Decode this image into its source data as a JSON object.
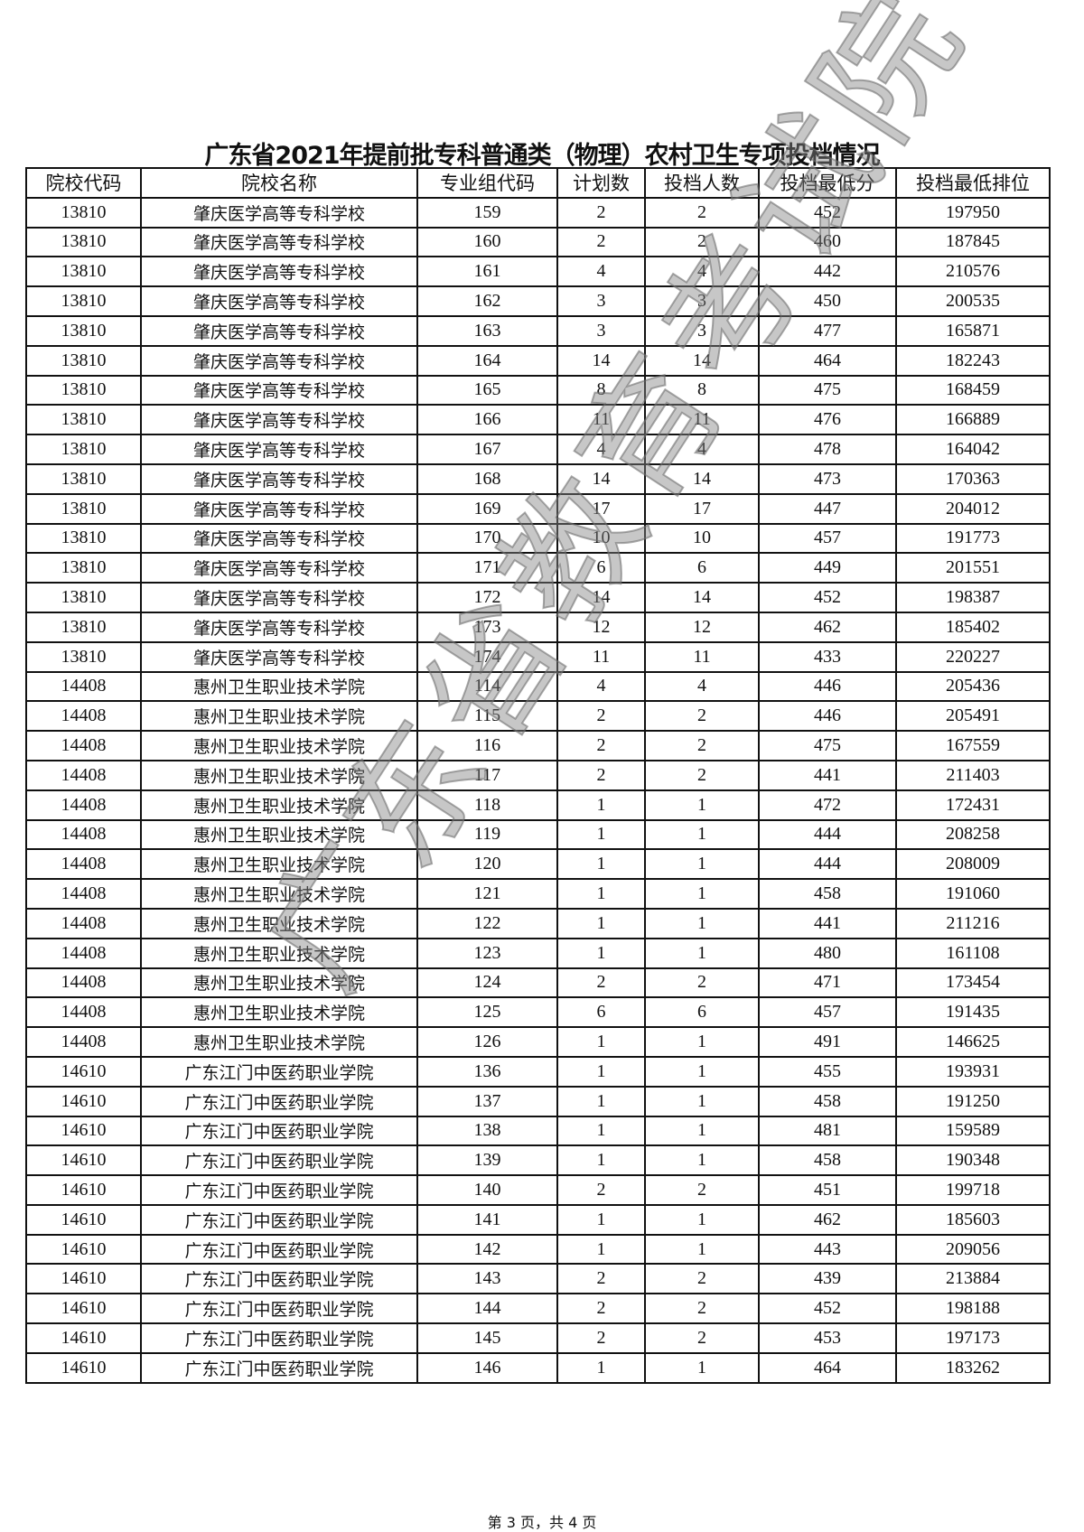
{
  "title": "广东省2021年提前批专科普通类（物理）农村卫生专项投档情况",
  "columns": [
    "院校代码",
    "院校名称",
    "专业组代码",
    "计划数",
    "投档人数",
    "投档最低分",
    "投档最低排位"
  ],
  "rows": [
    [
      "13810",
      "肇庆医学高等专科学校",
      "159",
      "2",
      "2",
      "452",
      "197950"
    ],
    [
      "13810",
      "肇庆医学高等专科学校",
      "160",
      "2",
      "2",
      "460",
      "187845"
    ],
    [
      "13810",
      "肇庆医学高等专科学校",
      "161",
      "4",
      "4",
      "442",
      "210576"
    ],
    [
      "13810",
      "肇庆医学高等专科学校",
      "162",
      "3",
      "3",
      "450",
      "200535"
    ],
    [
      "13810",
      "肇庆医学高等专科学校",
      "163",
      "3",
      "3",
      "477",
      "165871"
    ],
    [
      "13810",
      "肇庆医学高等专科学校",
      "164",
      "14",
      "14",
      "464",
      "182243"
    ],
    [
      "13810",
      "肇庆医学高等专科学校",
      "165",
      "8",
      "8",
      "475",
      "168459"
    ],
    [
      "13810",
      "肇庆医学高等专科学校",
      "166",
      "11",
      "11",
      "476",
      "166889"
    ],
    [
      "13810",
      "肇庆医学高等专科学校",
      "167",
      "4",
      "4",
      "478",
      "164042"
    ],
    [
      "13810",
      "肇庆医学高等专科学校",
      "168",
      "14",
      "14",
      "473",
      "170363"
    ],
    [
      "13810",
      "肇庆医学高等专科学校",
      "169",
      "17",
      "17",
      "447",
      "204012"
    ],
    [
      "13810",
      "肇庆医学高等专科学校",
      "170",
      "10",
      "10",
      "457",
      "191773"
    ],
    [
      "13810",
      "肇庆医学高等专科学校",
      "171",
      "6",
      "6",
      "449",
      "201551"
    ],
    [
      "13810",
      "肇庆医学高等专科学校",
      "172",
      "14",
      "14",
      "452",
      "198387"
    ],
    [
      "13810",
      "肇庆医学高等专科学校",
      "173",
      "12",
      "12",
      "462",
      "185402"
    ],
    [
      "13810",
      "肇庆医学高等专科学校",
      "174",
      "11",
      "11",
      "433",
      "220227"
    ],
    [
      "14408",
      "惠州卫生职业技术学院",
      "114",
      "4",
      "4",
      "446",
      "205436"
    ],
    [
      "14408",
      "惠州卫生职业技术学院",
      "115",
      "2",
      "2",
      "446",
      "205491"
    ],
    [
      "14408",
      "惠州卫生职业技术学院",
      "116",
      "2",
      "2",
      "475",
      "167559"
    ],
    [
      "14408",
      "惠州卫生职业技术学院",
      "117",
      "2",
      "2",
      "441",
      "211403"
    ],
    [
      "14408",
      "惠州卫生职业技术学院",
      "118",
      "1",
      "1",
      "472",
      "172431"
    ],
    [
      "14408",
      "惠州卫生职业技术学院",
      "119",
      "1",
      "1",
      "444",
      "208258"
    ],
    [
      "14408",
      "惠州卫生职业技术学院",
      "120",
      "1",
      "1",
      "444",
      "208009"
    ],
    [
      "14408",
      "惠州卫生职业技术学院",
      "121",
      "1",
      "1",
      "458",
      "191060"
    ],
    [
      "14408",
      "惠州卫生职业技术学院",
      "122",
      "1",
      "1",
      "441",
      "211216"
    ],
    [
      "14408",
      "惠州卫生职业技术学院",
      "123",
      "1",
      "1",
      "480",
      "161108"
    ],
    [
      "14408",
      "惠州卫生职业技术学院",
      "124",
      "2",
      "2",
      "471",
      "173454"
    ],
    [
      "14408",
      "惠州卫生职业技术学院",
      "125",
      "6",
      "6",
      "457",
      "191435"
    ],
    [
      "14408",
      "惠州卫生职业技术学院",
      "126",
      "1",
      "1",
      "491",
      "146625"
    ],
    [
      "14610",
      "广东江门中医药职业学院",
      "136",
      "1",
      "1",
      "455",
      "193931"
    ],
    [
      "14610",
      "广东江门中医药职业学院",
      "137",
      "1",
      "1",
      "458",
      "191250"
    ],
    [
      "14610",
      "广东江门中医药职业学院",
      "138",
      "1",
      "1",
      "481",
      "159589"
    ],
    [
      "14610",
      "广东江门中医药职业学院",
      "139",
      "1",
      "1",
      "458",
      "190348"
    ],
    [
      "14610",
      "广东江门中医药职业学院",
      "140",
      "2",
      "2",
      "451",
      "199718"
    ],
    [
      "14610",
      "广东江门中医药职业学院",
      "141",
      "1",
      "1",
      "462",
      "185603"
    ],
    [
      "14610",
      "广东江门中医药职业学院",
      "142",
      "1",
      "1",
      "443",
      "209056"
    ],
    [
      "14610",
      "广东江门中医药职业学院",
      "143",
      "2",
      "2",
      "439",
      "213884"
    ],
    [
      "14610",
      "广东江门中医药职业学院",
      "144",
      "2",
      "2",
      "452",
      "198188"
    ],
    [
      "14610",
      "广东江门中医药职业学院",
      "145",
      "2",
      "2",
      "453",
      "197173"
    ],
    [
      "14610",
      "广东江门中医药职业学院",
      "146",
      "1",
      "1",
      "464",
      "183262"
    ]
  ],
  "watermark": "广东省教育考试院",
  "footer": "第 3 页，共 4 页"
}
